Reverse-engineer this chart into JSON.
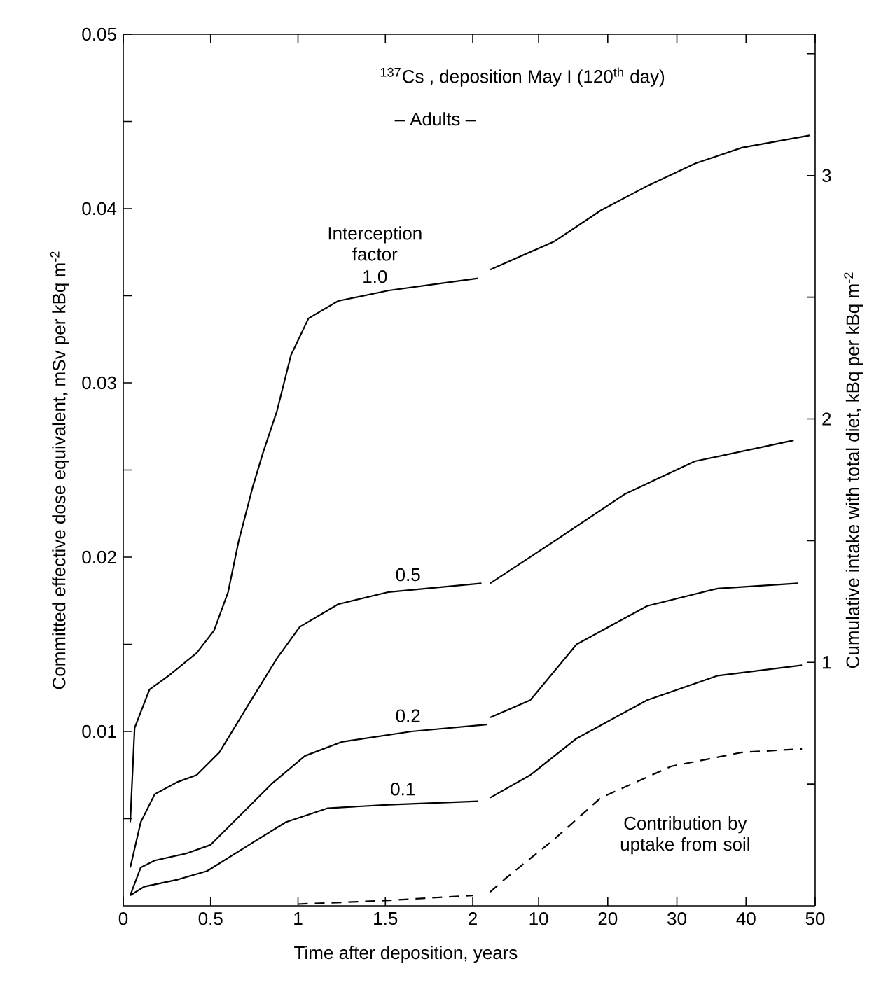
{
  "chart_data": [
    {
      "type": "line",
      "title": "$^{137}$Cs , deposition May I (120$^{th}$ day)",
      "subtitle": "– Adults –",
      "xlabel": "Time after deposition, years",
      "ylabel": "Committed effective dose equivalent, mSv per kBq m$^{-2}$",
      "xlim": [
        0,
        2.1
      ],
      "xticks": [
        0,
        0.5,
        1,
        1.5,
        2
      ],
      "ylim": [
        0,
        0.05
      ],
      "yticks": [
        {
          "value": 0.005,
          "label": null
        },
        0.01,
        {
          "value": 0.015,
          "label": null
        },
        0.02,
        {
          "value": 0.025,
          "label": null
        },
        0.03,
        {
          "value": 0.035,
          "label": null
        },
        0.04,
        {
          "value": 0.045,
          "label": null
        },
        0.05
      ],
      "series": [
        {
          "color": "#000000",
          "x": [
            0.04,
            0.065,
            0.15,
            0.26,
            0.42,
            0.52,
            0.6,
            0.66,
            0.74,
            0.8,
            0.88,
            0.96,
            1.06,
            1.23,
            1.52,
            1.81,
            2.03
          ],
          "values": [
            0.0048,
            0.0102,
            0.0124,
            0.0132,
            0.0145,
            0.0158,
            0.018,
            0.0209,
            0.024,
            0.026,
            0.0284,
            0.0316,
            0.0337,
            0.0347,
            0.0353,
            0.0357,
            0.036
          ]
        },
        {
          "color": "#000000",
          "x": [
            0.04,
            0.1,
            0.18,
            0.31,
            0.42,
            0.55,
            0.72,
            0.88,
            1.01,
            1.23,
            1.52,
            2.05
          ],
          "values": [
            0.0022,
            0.0048,
            0.0064,
            0.0071,
            0.0075,
            0.0088,
            0.0116,
            0.0142,
            0.016,
            0.0173,
            0.018,
            0.0185
          ]
        },
        {
          "color": "#000000",
          "x": [
            0.04,
            0.1,
            0.18,
            0.36,
            0.5,
            0.66,
            0.85,
            1.04,
            1.25,
            1.65,
            2.08
          ],
          "values": [
            0.0006,
            0.0022,
            0.0026,
            0.003,
            0.0035,
            0.0051,
            0.007,
            0.0086,
            0.0094,
            0.01,
            0.0104
          ]
        },
        {
          "color": "#000000",
          "x": [
            0.04,
            0.12,
            0.31,
            0.48,
            0.72,
            0.93,
            1.17,
            1.52,
            2.03
          ],
          "values": [
            0.0006,
            0.0011,
            0.0015,
            0.002,
            0.0035,
            0.0048,
            0.0056,
            0.0058,
            0.006
          ]
        },
        {
          "color": "#000000",
          "line_style": "dashed",
          "x": [
            1.0,
            1.5,
            2.0
          ],
          "values": [
            0.0001,
            0.0003,
            0.0006
          ]
        }
      ],
      "annotations": [
        "Interception factor",
        {
          "text": "1.0",
          "x": 1.44,
          "y": 0.0352
        },
        {
          "text": "0.5",
          "x": 1.63,
          "y": 0.0181
        },
        {
          "text": "0.2",
          "x": 1.63,
          "y": 0.01
        },
        {
          "text": "0.1",
          "x": 1.6,
          "y": 0.0058
        }
      ]
    },
    {
      "type": "line",
      "y2label": "Cumulative intake with total diet, kBq per kBq m$^{-2}$",
      "xlim": [
        3,
        50
      ],
      "xticks": [
        10,
        20,
        30,
        40,
        50
      ],
      "ylim": [
        0,
        0.05
      ],
      "y2lim": [
        0,
        3.58
      ],
      "y2ticks": [
        {
          "value": 0.5,
          "label": null
        },
        1,
        {
          "value": 1.5,
          "label": null
        },
        2,
        {
          "value": 2.5,
          "label": null
        },
        3,
        {
          "value": 3.5,
          "label": null
        }
      ],
      "series": [
        {
          "color": "#000000",
          "x": [
            3,
            5.3,
            12.2,
            19,
            25.7,
            32.7,
            39.4,
            49.2
          ],
          "values": [
            0.0365,
            0.0369,
            0.0381,
            0.0399,
            0.0413,
            0.0426,
            0.0435,
            0.0442
          ]
        },
        {
          "color": "#000000",
          "x": [
            3,
            12.2,
            22.4,
            32.6,
            46.9
          ],
          "values": [
            0.0185,
            0.0209,
            0.0236,
            0.0255,
            0.0267
          ]
        },
        {
          "color": "#000000",
          "x": [
            3,
            8.8,
            15.5,
            25.7,
            35.9,
            47.5
          ],
          "values": [
            0.0108,
            0.0118,
            0.015,
            0.0172,
            0.0182,
            0.0185
          ]
        },
        {
          "color": "#000000",
          "x": [
            3,
            8.8,
            15.5,
            25.7,
            35.9,
            48.1
          ],
          "values": [
            0.0062,
            0.0075,
            0.0096,
            0.0118,
            0.0132,
            0.0138
          ]
        },
        {
          "color": "#000000",
          "line_style": "dashed",
          "x": [
            3,
            5.3,
            12.2,
            19,
            29.2,
            39.4,
            48.1
          ],
          "values": [
            0.0008,
            0.0016,
            0.0038,
            0.0062,
            0.008,
            0.0088,
            0.009
          ]
        }
      ],
      "annotations": [
        "Contribution by uptake from soil"
      ]
    }
  ]
}
